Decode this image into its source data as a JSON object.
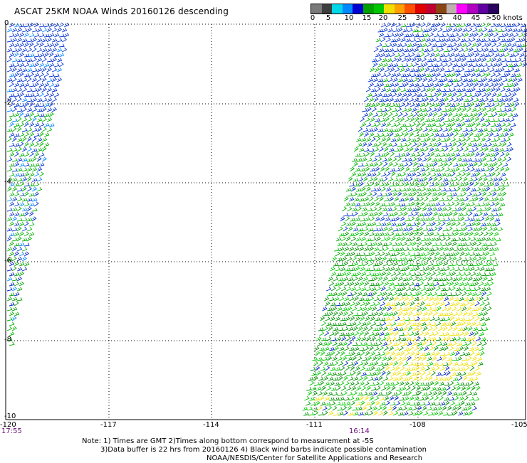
{
  "title": "ASCAT 25KM NOAA Winds 20160126 descending",
  "legend": {
    "colors": [
      "#7a7a7a",
      "#3e3e3e",
      "#00d8e8",
      "#0088ff",
      "#0000d0",
      "#00a000",
      "#00c800",
      "#f0e000",
      "#ffa000",
      "#ff5000",
      "#e00000",
      "#c00030",
      "#8b4513",
      "#c0b0b0",
      "#ff00ff",
      "#b000c0",
      "#6000a0",
      "#2a0060"
    ],
    "labels": [
      "0",
      "5",
      "10",
      "15",
      "20",
      "25",
      "30",
      "35",
      "40",
      "45",
      ">50 knots"
    ]
  },
  "axes": {
    "x_ticks": [
      "-120",
      "-117",
      "-114",
      "-111",
      "-108",
      "-105"
    ],
    "y_ticks": [
      "0",
      "-2",
      "-4",
      "-6",
      "-8",
      "-10"
    ]
  },
  "times": [
    "17:55",
    "16:14"
  ],
  "notes": [
    "Note: 1) Times are GMT 2)Times along bottom correspond to measurement at -5S",
    "3)Data buffer is 22 hrs from 20160126 4) Black wind barbs indicate possible contamination",
    "NOAA/NESDIS/Center for Satellite Applications and Research"
  ]
}
